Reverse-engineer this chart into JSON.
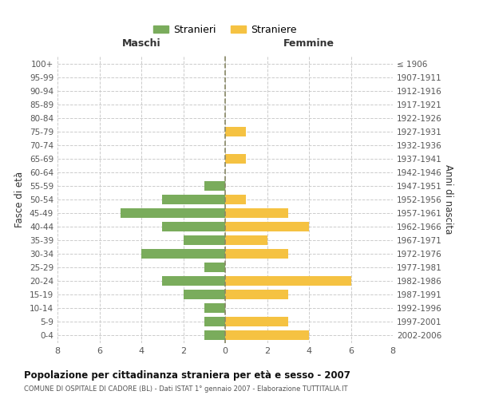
{
  "age_groups": [
    "0-4",
    "5-9",
    "10-14",
    "15-19",
    "20-24",
    "25-29",
    "30-34",
    "35-39",
    "40-44",
    "45-49",
    "50-54",
    "55-59",
    "60-64",
    "65-69",
    "70-74",
    "75-79",
    "80-84",
    "85-89",
    "90-94",
    "95-99",
    "100+"
  ],
  "birth_years": [
    "2002-2006",
    "1997-2001",
    "1992-1996",
    "1987-1991",
    "1982-1986",
    "1977-1981",
    "1972-1976",
    "1967-1971",
    "1962-1966",
    "1957-1961",
    "1952-1956",
    "1947-1951",
    "1942-1946",
    "1937-1941",
    "1932-1936",
    "1927-1931",
    "1922-1926",
    "1917-1921",
    "1912-1916",
    "1907-1911",
    "≤ 1906"
  ],
  "males": [
    1,
    1,
    1,
    2,
    3,
    1,
    4,
    2,
    3,
    5,
    3,
    1,
    0,
    0,
    0,
    0,
    0,
    0,
    0,
    0,
    0
  ],
  "females": [
    4,
    3,
    0,
    3,
    6,
    0,
    3,
    2,
    4,
    3,
    1,
    0,
    0,
    1,
    0,
    1,
    0,
    0,
    0,
    0,
    0
  ],
  "male_color": "#7aac5c",
  "female_color": "#f5c242",
  "title": "Popolazione per cittadinanza straniera per età e sesso - 2007",
  "subtitle": "COMUNE DI OSPITALE DI CADORE (BL) - Dati ISTAT 1° gennaio 2007 - Elaborazione TUTTITALIA.IT",
  "ylabel_left": "Fasce di età",
  "ylabel_right": "Anni di nascita",
  "xlabel_male": "Maschi",
  "xlabel_female": "Femmine",
  "legend_male": "Stranieri",
  "legend_female": "Straniere",
  "xlim": 8,
  "background_color": "#ffffff",
  "grid_color": "#cccccc"
}
